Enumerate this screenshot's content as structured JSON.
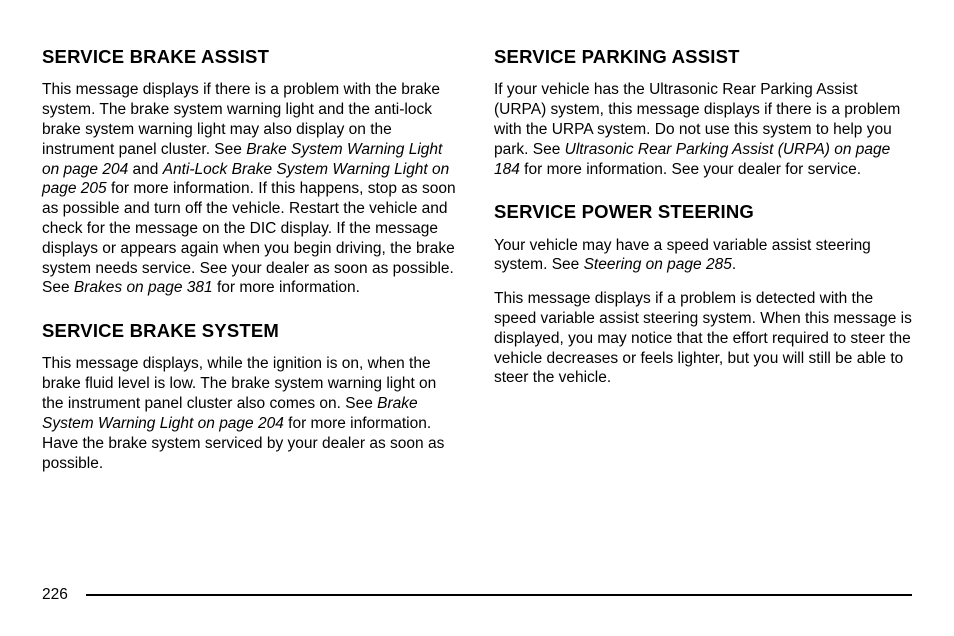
{
  "page_number": "226",
  "left": {
    "sections": [
      {
        "heading": "SERVICE BRAKE ASSIST",
        "body_pre": "This message displays if there is a problem with the brake system. The brake system warning light and the anti-lock brake system warning light may also display on the instrument panel cluster. See ",
        "ital1": "Brake System Warning Light on page 204",
        "mid1": " and ",
        "ital2": "Anti-Lock Brake System Warning Light on page 205",
        "mid2": " for more information. If this happens, stop as soon as possible and turn off the vehicle. Restart the vehicle and check for the message on the DIC display. If the message displays or appears again when you begin driving, the brake system needs service. See your dealer as soon as possible. See ",
        "ital3": "Brakes on page 381",
        "body_post": " for more information."
      },
      {
        "heading": "SERVICE BRAKE SYSTEM",
        "body_pre": "This message displays, while the ignition is on, when the brake fluid level is low. The brake system warning light on the instrument panel cluster also comes on. See ",
        "ital1": "Brake System Warning Light on page 204",
        "mid1": " for more information. Have the brake system serviced by your dealer as soon as possible.",
        "ital2": "",
        "mid2": "",
        "ital3": "",
        "body_post": ""
      }
    ]
  },
  "right": {
    "sections": [
      {
        "heading": "SERVICE PARKING ASSIST",
        "body_pre": "If your vehicle has the Ultrasonic Rear Parking Assist (URPA) system, this message displays if there is a problem with the URPA system. Do not use this system to help you park. See ",
        "ital1": "Ultrasonic Rear Parking Assist (URPA) on page 184",
        "mid1": " for more information. See your dealer for service.",
        "ital2": "",
        "mid2": "",
        "ital3": "",
        "body_post": ""
      },
      {
        "heading": "SERVICE POWER STEERING",
        "p1_pre": "Your vehicle may have a speed variable assist steering system. See ",
        "p1_ital": "Steering on page 285",
        "p1_post": ".",
        "p2": "This message displays if a problem is detected with the speed variable assist steering system. When this message is displayed, you may notice that the effort required to steer the vehicle decreases or feels lighter, but you will still be able to steer the vehicle."
      }
    ]
  }
}
